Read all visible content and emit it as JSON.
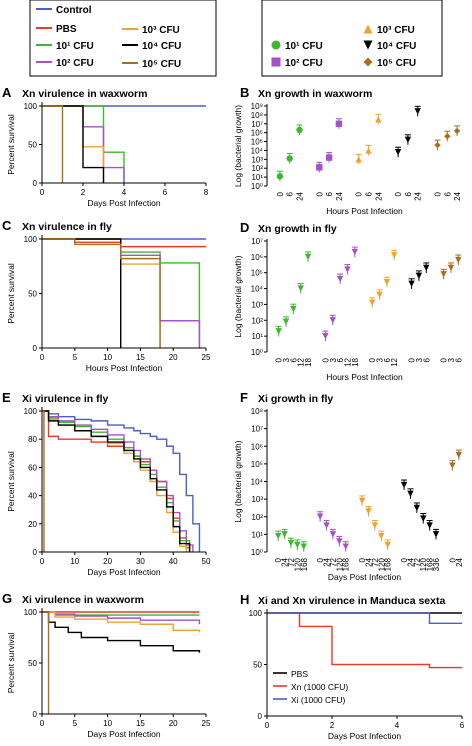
{
  "legend_left": {
    "items": [
      {
        "label": "Control",
        "color": "#4b5fc4"
      },
      {
        "label": "PBS",
        "color": "#e8392a"
      },
      {
        "label": "10¹ CFU",
        "color": "#3cb82e"
      },
      {
        "label": "10² CFU",
        "color": "#a552c9"
      },
      {
        "label": "10³ CFU",
        "color": "#f0a22e"
      },
      {
        "label": "10⁴ CFU",
        "color": "#000000"
      },
      {
        "label": "10⁵ CFU",
        "color": "#a86d1d"
      }
    ]
  },
  "legend_right": {
    "items": [
      {
        "label": "10¹ CFU",
        "marker": "circle",
        "color": "#3cb82e"
      },
      {
        "label": "10² CFU",
        "marker": "square",
        "color": "#a552c9"
      },
      {
        "label": "10³ CFU",
        "marker": "triangle-up",
        "color": "#f0a22e"
      },
      {
        "label": "10⁴ CFU",
        "marker": "triangle-down",
        "color": "#000000"
      },
      {
        "label": "10⁵ CFU",
        "marker": "diamond",
        "color": "#a86d1d"
      }
    ]
  },
  "chart_data": [
    {
      "panel": "A",
      "type": "line",
      "step": true,
      "title": "Xn virulence in waxworm",
      "xlabel": "Days Post Infection",
      "ylabel": "Percent survival",
      "xlim": [
        0,
        8
      ],
      "ylim": [
        0,
        100
      ],
      "xticks": [
        "0",
        "2",
        "4",
        "6",
        "8"
      ],
      "yticks": [
        "0",
        "50",
        "100"
      ],
      "series": [
        {
          "name": "Control",
          "color": "#4b5fc4",
          "x": [
            0,
            8
          ],
          "y": [
            100,
            100
          ]
        },
        {
          "name": "10¹ CFU",
          "color": "#3cb82e",
          "x": [
            0,
            3,
            3,
            4,
            4
          ],
          "y": [
            100,
            100,
            40,
            40,
            0
          ]
        },
        {
          "name": "10² CFU",
          "color": "#a552c9",
          "x": [
            0,
            2,
            2,
            3,
            3,
            4,
            4
          ],
          "y": [
            100,
            100,
            73,
            73,
            20,
            20,
            0
          ]
        },
        {
          "name": "10³ CFU",
          "color": "#f0a22e",
          "x": [
            0,
            2,
            2,
            3,
            3
          ],
          "y": [
            100,
            100,
            47,
            47,
            0
          ]
        },
        {
          "name": "10⁴ CFU",
          "color": "#000000",
          "x": [
            0,
            2,
            2,
            3,
            3
          ],
          "y": [
            100,
            100,
            20,
            20,
            0
          ]
        },
        {
          "name": "10⁵ CFU",
          "color": "#a86d1d",
          "x": [
            0,
            1,
            1
          ],
          "y": [
            100,
            100,
            0
          ]
        }
      ]
    },
    {
      "panel": "B",
      "type": "scatter",
      "title": "Xn growth in waxworm",
      "xlabel": "Hours Post Infection",
      "ylabel": "Log (bacterial growth)",
      "ylim": [
        0,
        9
      ],
      "log_scale": true,
      "yticks": [
        "10⁰",
        "10¹",
        "10²",
        "10³",
        "10⁴",
        "10⁵",
        "10⁶",
        "10⁷",
        "10⁸",
        "10⁹"
      ],
      "groups": [
        {
          "name": "10¹ CFU",
          "marker": "circle",
          "color": "#3cb82e",
          "categories": [
            "0",
            "6",
            "24"
          ],
          "log_values": [
            1.1,
            3.1,
            6.3
          ]
        },
        {
          "name": "10² CFU",
          "marker": "square",
          "color": "#a552c9",
          "categories": [
            "0",
            "6",
            "24"
          ],
          "log_values": [
            2.1,
            3.2,
            7.0
          ]
        },
        {
          "name": "10³ CFU",
          "marker": "triangle-up",
          "color": "#f0a22e",
          "categories": [
            "0",
            "6",
            "24"
          ],
          "log_values": [
            3.0,
            4.0,
            7.5
          ]
        },
        {
          "name": "10⁴ CFU",
          "marker": "triangle-down",
          "color": "#000000",
          "categories": [
            "0",
            "6",
            "24"
          ],
          "log_values": [
            3.8,
            5.2,
            8.4
          ]
        },
        {
          "name": "10⁵ CFU",
          "marker": "diamond",
          "color": "#a86d1d",
          "categories": [
            "0",
            "6",
            "24"
          ],
          "log_values": [
            4.6,
            5.6,
            6.2
          ]
        }
      ]
    },
    {
      "panel": "C",
      "type": "line",
      "step": true,
      "title": "Xn virulence in fly",
      "xlabel": "Hours Post Infection",
      "ylabel": "Percent survival",
      "xlim": [
        0,
        25
      ],
      "ylim": [
        0,
        100
      ],
      "xticks": [
        "0",
        "5",
        "10",
        "15",
        "20",
        "25"
      ],
      "yticks": [
        "0",
        "50",
        "100"
      ],
      "series": [
        {
          "name": "Control",
          "color": "#4b5fc4",
          "x": [
            0,
            25
          ],
          "y": [
            100,
            100
          ]
        },
        {
          "name": "PBS",
          "color": "#e8392a",
          "x": [
            0,
            5,
            5,
            12,
            12,
            25
          ],
          "y": [
            100,
            100,
            97,
            97,
            93,
            93
          ]
        },
        {
          "name": "10¹ CFU",
          "color": "#3cb82e",
          "x": [
            0,
            12,
            12,
            18,
            18,
            24,
            24
          ],
          "y": [
            100,
            100,
            88,
            88,
            78,
            78,
            0
          ]
        },
        {
          "name": "10² CFU",
          "color": "#a552c9",
          "x": [
            0,
            12,
            12,
            18,
            18,
            24,
            24
          ],
          "y": [
            100,
            100,
            85,
            85,
            25,
            25,
            0
          ]
        },
        {
          "name": "10³ CFU",
          "color": "#f0a22e",
          "x": [
            0,
            12,
            12,
            18,
            18
          ],
          "y": [
            100,
            100,
            77,
            77,
            0
          ]
        },
        {
          "name": "10⁴ CFU",
          "color": "#000000",
          "x": [
            0,
            12,
            12
          ],
          "y": [
            100,
            100,
            0
          ]
        },
        {
          "name": "10⁵ CFU",
          "color": "#a86d1d",
          "x": [
            0,
            5,
            5,
            12,
            12,
            18,
            18
          ],
          "y": [
            100,
            100,
            95,
            95,
            82,
            82,
            0
          ]
        }
      ]
    },
    {
      "panel": "D",
      "type": "scatter",
      "title": "Xn growth in fly",
      "xlabel": "Hours Post Infection",
      "ylabel": "Log (bacterial growth)",
      "ylim": [
        0,
        7
      ],
      "log_scale": true,
      "yticks": [
        "10⁰",
        "10¹",
        "10²",
        "10³",
        "10⁴",
        "10⁵",
        "10⁶",
        "10⁷"
      ],
      "groups": [
        {
          "name": "10¹ CFU",
          "color": "#3cb82e",
          "categories": [
            "0",
            "3",
            "6",
            "12",
            "18"
          ],
          "log_values": [
            1.3,
            1.9,
            2.7,
            4.0,
            6.0
          ]
        },
        {
          "name": "10² CFU",
          "color": "#a552c9",
          "categories": [
            "0",
            "3",
            "6",
            "12",
            "18"
          ],
          "log_values": [
            1.0,
            2.0,
            4.6,
            5.2,
            6.3
          ]
        },
        {
          "name": "10³ CFU",
          "color": "#f0a22e",
          "categories": [
            "0",
            "3",
            "6",
            "12"
          ],
          "log_values": [
            3.1,
            3.6,
            4.4,
            6.1
          ]
        },
        {
          "name": "10⁴ CFU",
          "color": "#000000",
          "categories": [
            "0",
            "3",
            "6"
          ],
          "log_values": [
            4.3,
            4.8,
            5.3
          ]
        },
        {
          "name": "10⁵ CFU",
          "color": "#a86d1d",
          "categories": [
            "0",
            "3",
            "6"
          ],
          "log_values": [
            4.9,
            5.3,
            5.8
          ]
        }
      ]
    },
    {
      "panel": "E",
      "type": "line",
      "step": true,
      "title": "Xi virulence in fly",
      "xlabel": "Days Post Infection",
      "ylabel": "Percent survival",
      "xlim": [
        0,
        50
      ],
      "ylim": [
        0,
        100
      ],
      "xticks": [
        "0",
        "10",
        "20",
        "30",
        "40",
        "50"
      ],
      "yticks": [
        "0",
        "20",
        "40",
        "60",
        "80",
        "100"
      ],
      "series": [
        {
          "name": "Control",
          "color": "#4b5fc4",
          "x": [
            0,
            2,
            5,
            10,
            15,
            20,
            25,
            28,
            30,
            33,
            35,
            38,
            40,
            42,
            44,
            46,
            48
          ],
          "y": [
            100,
            98,
            96,
            94,
            93,
            90,
            88,
            86,
            84,
            82,
            80,
            75,
            70,
            55,
            40,
            20,
            0
          ]
        },
        {
          "name": "PBS",
          "color": "#e8392a",
          "x": [
            0,
            2,
            5,
            10,
            15,
            20,
            25,
            28,
            30,
            33,
            35,
            38,
            40,
            42,
            44,
            45
          ],
          "y": [
            100,
            82,
            80,
            80,
            78,
            75,
            72,
            68,
            64,
            58,
            50,
            38,
            24,
            10,
            3,
            0
          ]
        },
        {
          "name": "10¹ CFU",
          "color": "#3cb82e",
          "x": [
            0,
            2,
            5,
            10,
            15,
            20,
            25,
            28,
            30,
            33,
            35,
            38,
            40,
            42,
            45
          ],
          "y": [
            100,
            95,
            92,
            89,
            85,
            80,
            74,
            68,
            62,
            55,
            46,
            35,
            22,
            8,
            0
          ]
        },
        {
          "name": "10² CFU",
          "color": "#a552c9",
          "x": [
            0,
            2,
            5,
            10,
            15,
            20,
            25,
            28,
            30,
            33,
            35,
            38,
            40,
            42,
            44,
            46
          ],
          "y": [
            100,
            96,
            93,
            90,
            87,
            83,
            78,
            72,
            66,
            58,
            50,
            40,
            28,
            15,
            5,
            0
          ]
        },
        {
          "name": "10³ CFU",
          "color": "#f0a22e",
          "x": [
            0,
            2,
            5,
            10,
            15,
            20,
            25,
            28,
            30,
            33,
            35,
            38,
            40,
            42,
            44
          ],
          "y": [
            100,
            94,
            90,
            86,
            82,
            77,
            70,
            64,
            58,
            50,
            40,
            28,
            14,
            4,
            0
          ]
        },
        {
          "name": "10⁴ CFU",
          "color": "#000000",
          "x": [
            0,
            2,
            5,
            10,
            15,
            20,
            25,
            28,
            30,
            33,
            35,
            38,
            40,
            42,
            45
          ],
          "y": [
            100,
            93,
            90,
            86,
            82,
            78,
            72,
            66,
            60,
            52,
            44,
            32,
            18,
            6,
            0
          ]
        },
        {
          "name": "10⁵ CFU",
          "color": "#a86d1d",
          "x": [
            0,
            0.6,
            0.6
          ],
          "y": [
            100,
            100,
            0
          ]
        }
      ]
    },
    {
      "panel": "F",
      "type": "scatter",
      "title": "Xi growth in fly",
      "xlabel": "Days Post Infection",
      "ylabel": "Log (bacterial growth)",
      "ylim": [
        0,
        8
      ],
      "log_scale": true,
      "yticks": [
        "10⁰",
        "10¹",
        "10²",
        "10³",
        "10⁴",
        "10⁵",
        "10⁶",
        "10⁷",
        "10⁸"
      ],
      "groups": [
        {
          "name": "10¹ CFU",
          "color": "#3cb82e",
          "categories": [
            "0",
            "24",
            "72",
            "120",
            "168"
          ],
          "log_values": [
            0.9,
            1.0,
            0.5,
            0.4,
            0.3
          ]
        },
        {
          "name": "10² CFU",
          "color": "#a552c9",
          "categories": [
            "0",
            "24",
            "72",
            "120",
            "168"
          ],
          "log_values": [
            2.0,
            1.5,
            1.0,
            0.6,
            0.3
          ]
        },
        {
          "name": "10³ CFU",
          "color": "#f0a22e",
          "categories": [
            "0",
            "24",
            "72",
            "120",
            "168"
          ],
          "log_values": [
            2.9,
            2.3,
            1.5,
            0.9,
            0.4
          ]
        },
        {
          "name": "10⁴ CFU",
          "color": "#000000",
          "categories": [
            "0",
            "24",
            "72",
            "120",
            "168",
            "336"
          ],
          "log_values": [
            3.8,
            3.3,
            2.5,
            1.9,
            1.5,
            1.0
          ]
        },
        {
          "name": "10⁵ CFU",
          "color": "#a86d1d",
          "categories": [
            "0",
            "24"
          ],
          "log_values": [
            4.9,
            5.5
          ]
        }
      ]
    },
    {
      "panel": "G",
      "type": "line",
      "step": true,
      "title": "Xi virulence in waxworm",
      "xlabel": "Days Post Infection",
      "ylabel": "Percent survival",
      "xlim": [
        0,
        25
      ],
      "ylim": [
        0,
        100
      ],
      "xticks": [
        "0",
        "5",
        "10",
        "15",
        "20",
        "25"
      ],
      "yticks": [
        "0",
        "50",
        "100"
      ],
      "series": [
        {
          "name": "PBS",
          "color": "#e8392a",
          "x": [
            0,
            24
          ],
          "y": [
            100,
            100
          ]
        },
        {
          "name": "10¹ CFU",
          "color": "#3cb82e",
          "x": [
            0,
            2,
            2,
            24
          ],
          "y": [
            100,
            100,
            97,
            97
          ]
        },
        {
          "name": "10² CFU",
          "color": "#a552c9",
          "x": [
            0,
            2,
            5,
            10,
            15,
            24
          ],
          "y": [
            100,
            98,
            96,
            94,
            92,
            88
          ]
        },
        {
          "name": "10³ CFU",
          "color": "#f0a22e",
          "x": [
            0,
            2,
            5,
            10,
            15,
            20,
            24
          ],
          "y": [
            100,
            95,
            93,
            90,
            88,
            82,
            80
          ]
        },
        {
          "name": "10⁴ CFU",
          "color": "#000000",
          "x": [
            0,
            1,
            2,
            4,
            6,
            10,
            15,
            20,
            24
          ],
          "y": [
            100,
            90,
            85,
            80,
            75,
            72,
            67,
            62,
            60
          ]
        },
        {
          "name": "10⁵ CFU",
          "color": "#a86d1d",
          "x": [
            0,
            1,
            1
          ],
          "y": [
            100,
            100,
            0
          ]
        }
      ]
    },
    {
      "panel": "H",
      "type": "line",
      "step": true,
      "title": "Xi and Xn virulence in Manduca sexta",
      "xlabel": "Days Post Infection",
      "ylabel": "",
      "xlim": [
        0,
        6
      ],
      "ylim": [
        0,
        100
      ],
      "xticks": [
        "0",
        "2",
        "4",
        "6"
      ],
      "yticks": [
        "0",
        "50",
        "100"
      ],
      "legend": [
        "PBS",
        "Xn (1000 CFU)",
        "Xi (1000 CFU)"
      ],
      "series": [
        {
          "name": "PBS",
          "color": "#000000",
          "x": [
            0,
            6
          ],
          "y": [
            100,
            100
          ]
        },
        {
          "name": "Xn (1000 CFU)",
          "color": "#e8392a",
          "x": [
            0,
            1,
            1,
            2,
            2,
            5,
            5,
            6
          ],
          "y": [
            100,
            100,
            87,
            87,
            50,
            50,
            47,
            47
          ]
        },
        {
          "name": "Xi (1000 CFU)",
          "color": "#4b5fc4",
          "x": [
            0,
            5,
            5,
            6
          ],
          "y": [
            100,
            100,
            90,
            90
          ]
        }
      ]
    }
  ]
}
